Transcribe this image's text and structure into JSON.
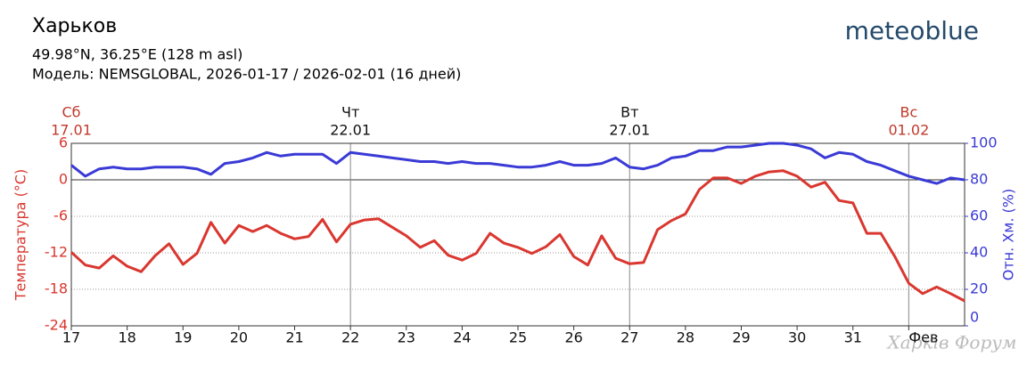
{
  "header": {
    "title": "Харьков",
    "coords": "49.98°N, 36.25°E (128 m asl)",
    "model": "Модель: NEMSGLOBAL, 2026-01-17 / 2026-02-01 (16 дней)",
    "logo": "meteoblue"
  },
  "watermark": "Харків Форум",
  "chart_data": {
    "type": "line",
    "ylabel": "Температура (°C)",
    "y2label": "Отн. Хм. (%)",
    "x": [
      17,
      17.25,
      17.5,
      17.75,
      18,
      18.25,
      18.5,
      18.75,
      19,
      19.25,
      19.5,
      19.75,
      20,
      20.25,
      20.5,
      20.75,
      21,
      21.25,
      21.5,
      21.75,
      22,
      22.25,
      22.5,
      22.75,
      23,
      23.25,
      23.5,
      23.75,
      24,
      24.25,
      24.5,
      24.75,
      25,
      25.25,
      25.5,
      25.75,
      26,
      26.25,
      26.5,
      26.75,
      27,
      27.25,
      27.5,
      27.75,
      28,
      28.25,
      28.5,
      28.75,
      29,
      29.25,
      29.5,
      29.75,
      30,
      30.25,
      30.5,
      30.75,
      31,
      31.25,
      31.5,
      31.75,
      32,
      32.25,
      32.5,
      32.75,
      33
    ],
    "series": [
      {
        "name": "Температура",
        "color": "#d9372f",
        "axis": "y",
        "values": [
          -11.9,
          -14.0,
          -14.5,
          -12.5,
          -14.2,
          -15.1,
          -12.5,
          -10.5,
          -13.9,
          -12.1,
          -7.0,
          -10.4,
          -7.5,
          -8.5,
          -7.5,
          -8.8,
          -9.7,
          -9.3,
          -6.5,
          -10.2,
          -7.3,
          -6.6,
          -6.4,
          -7.8,
          -9.2,
          -11.1,
          -10.0,
          -12.4,
          -13.2,
          -12.1,
          -8.8,
          -10.4,
          -11.1,
          -12.1,
          -11.0,
          -9.0,
          -12.6,
          -14.0,
          -9.2,
          -12.9,
          -13.8,
          -13.6,
          -8.2,
          -6.7,
          -5.6,
          -1.6,
          0.3,
          0.3,
          -0.6,
          0.6,
          1.3,
          1.5,
          0.6,
          -1.2,
          -0.4,
          -3.4,
          -3.8,
          -8.8,
          -8.8,
          -12.6,
          -17.0,
          -18.7,
          -17.6,
          -18.7,
          -19.9
        ]
      },
      {
        "name": "Отн. Хм.",
        "color": "#3a3ad6",
        "axis": "y2",
        "values": [
          88,
          82,
          86,
          87,
          86,
          86,
          87,
          87,
          87,
          86,
          83,
          89,
          90,
          92,
          95,
          93,
          94,
          94,
          94,
          89,
          95,
          94,
          93,
          92,
          91,
          90,
          90,
          89,
          90,
          89,
          89,
          88,
          87,
          87,
          88,
          90,
          88,
          88,
          89,
          92,
          87,
          86,
          88,
          92,
          93,
          96,
          96,
          98,
          98,
          99,
          100,
          100,
          99,
          97,
          92,
          95,
          94,
          90,
          88,
          85,
          82,
          80,
          78,
          81,
          80
        ]
      }
    ],
    "xlim": [
      17,
      33
    ],
    "xticks": [
      17,
      18,
      19,
      20,
      21,
      22,
      23,
      24,
      25,
      26,
      27,
      28,
      29,
      30,
      31,
      {
        "value": 32,
        "label": "Фев"
      }
    ],
    "ylim": [
      -24,
      6
    ],
    "yticks": [
      -24,
      -18,
      -12,
      -6,
      0,
      6
    ],
    "y2lim": [
      0,
      100
    ],
    "y2ticks": [
      0,
      20,
      40,
      60,
      80,
      100
    ],
    "grid": true,
    "day_labels": [
      {
        "x": 17,
        "weekday": "Сб",
        "date": "17.01",
        "color": "#c0392b"
      },
      {
        "x": 22,
        "weekday": "Чт",
        "date": "22.01",
        "color": "#111111"
      },
      {
        "x": 27,
        "weekday": "Вт",
        "date": "27.01",
        "color": "#111111"
      },
      {
        "x": 32,
        "weekday": "Вс",
        "date": "01.02",
        "color": "#c0392b"
      }
    ]
  }
}
